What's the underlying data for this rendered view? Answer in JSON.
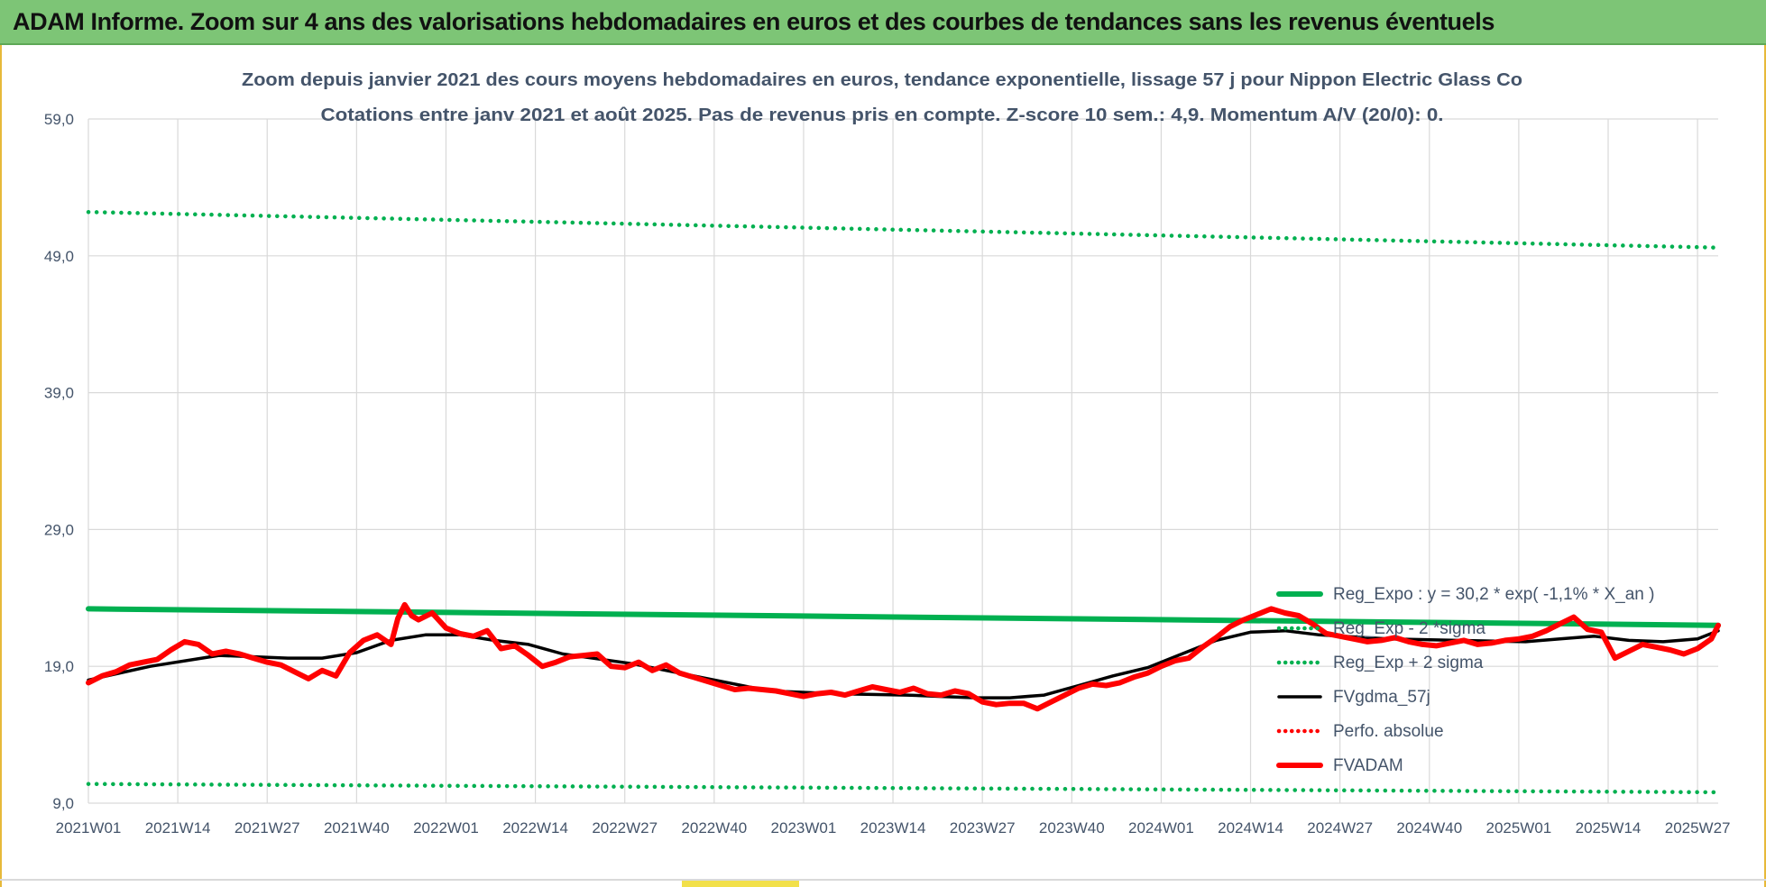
{
  "banner": {
    "text": "ADAM Informe. Zoom sur 4 ans des valorisations hebdomadaires en euros et des courbes de tendances sans les revenus éventuels"
  },
  "colors": {
    "banner_bg": "#7dc576",
    "reg_expo": "#00b050",
    "fvgdma": "#000000",
    "perfo": "#ff0000",
    "fvadam": "#ff0000",
    "grid": "#d9d9d9",
    "text": "#44546a"
  },
  "chart_data": {
    "type": "line",
    "title": "Zoom depuis janvier 2021 des cours moyens hebdomadaires en euros, tendance exponentielle, lissage 57 j pour Nippon Electric Glass Co",
    "subtitle": "Cotations entre janv 2021 et août 2025.  Pas de revenus pris en compte. Z-score 10 sem.: 4,9. Momentum A/V (20/0): 0.",
    "xlabel": "",
    "ylabel": "",
    "ylim": [
      9,
      59
    ],
    "yticks": [
      "9,0",
      "19,0",
      "29,0",
      "39,0",
      "49,0",
      "59,0"
    ],
    "x_range_weeks": [
      1,
      238
    ],
    "x_ticks": [
      {
        "week": 1,
        "label": "2021W01"
      },
      {
        "week": 14,
        "label": "2021W14"
      },
      {
        "week": 27,
        "label": "2021W27"
      },
      {
        "week": 40,
        "label": "2021W40"
      },
      {
        "week": 53,
        "label": "2022W01"
      },
      {
        "week": 66,
        "label": "2022W14"
      },
      {
        "week": 79,
        "label": "2022W27"
      },
      {
        "week": 92,
        "label": "2022W40"
      },
      {
        "week": 105,
        "label": "2023W01"
      },
      {
        "week": 118,
        "label": "2023W14"
      },
      {
        "week": 131,
        "label": "2023W27"
      },
      {
        "week": 144,
        "label": "2023W40"
      },
      {
        "week": 157,
        "label": "2024W01"
      },
      {
        "week": 170,
        "label": "2024W14"
      },
      {
        "week": 183,
        "label": "2024W27"
      },
      {
        "week": 196,
        "label": "2024W40"
      },
      {
        "week": 209,
        "label": "2025W01"
      },
      {
        "week": 222,
        "label": "2025W14"
      },
      {
        "week": 235,
        "label": "2025W27"
      }
    ],
    "grid": true,
    "legend_position": "right",
    "series": [
      {
        "name": "Reg_Expo : y = 30,2 * exp( -1,1% *  X_an )",
        "style": "solid-thick",
        "color": "#00b050",
        "x": [
          1,
          238
        ],
        "y": [
          23.2,
          22.0
        ]
      },
      {
        "name": "Reg_Exp - 2 *sigma",
        "style": "dotted",
        "color": "#00b050",
        "x": [
          1,
          238
        ],
        "y": [
          10.4,
          9.8
        ]
      },
      {
        "name": "Reg_Exp + 2 sigma",
        "style": "dotted",
        "color": "#00b050",
        "x": [
          1,
          238
        ],
        "y": [
          52.2,
          49.6
        ]
      },
      {
        "name": "FVgdma_57j",
        "style": "solid",
        "color": "#000000",
        "x": [
          1,
          10,
          20,
          30,
          35,
          40,
          45,
          50,
          55,
          60,
          65,
          70,
          80,
          90,
          100,
          110,
          120,
          125,
          130,
          135,
          140,
          145,
          150,
          155,
          160,
          165,
          170,
          175,
          180,
          190,
          200,
          210,
          215,
          220,
          225,
          230,
          235,
          238
        ],
        "y": [
          18.0,
          19.0,
          19.8,
          19.6,
          19.6,
          20.0,
          20.9,
          21.3,
          21.3,
          20.9,
          20.6,
          19.9,
          19.2,
          18.2,
          17.2,
          17.0,
          16.9,
          16.8,
          16.7,
          16.7,
          16.9,
          17.6,
          18.3,
          18.9,
          19.9,
          20.9,
          21.5,
          21.6,
          21.3,
          21.0,
          20.9,
          20.8,
          21.0,
          21.2,
          20.9,
          20.8,
          21.0,
          21.6
        ]
      },
      {
        "name": "Perfo. absolue",
        "style": "dotted",
        "color": "#ff0000",
        "x": [],
        "y": []
      },
      {
        "name": "FVADAM",
        "style": "solid-thick",
        "color": "#ff0000",
        "x": [
          1,
          3,
          5,
          7,
          9,
          11,
          13,
          15,
          17,
          19,
          21,
          23,
          25,
          27,
          29,
          31,
          33,
          35,
          37,
          39,
          41,
          43,
          45,
          46,
          47,
          48,
          49,
          51,
          53,
          55,
          57,
          59,
          61,
          63,
          65,
          67,
          69,
          71,
          73,
          75,
          77,
          79,
          81,
          83,
          85,
          87,
          89,
          91,
          93,
          95,
          97,
          99,
          101,
          103,
          105,
          107,
          109,
          111,
          113,
          115,
          117,
          119,
          121,
          123,
          125,
          127,
          129,
          131,
          133,
          135,
          137,
          139,
          141,
          143,
          145,
          147,
          149,
          151,
          153,
          155,
          157,
          159,
          161,
          163,
          165,
          167,
          169,
          171,
          173,
          175,
          177,
          179,
          181,
          183,
          185,
          187,
          189,
          191,
          193,
          195,
          197,
          199,
          201,
          203,
          205,
          207,
          209,
          211,
          213,
          215,
          217,
          219,
          221,
          223,
          225,
          227,
          229,
          231,
          233,
          235,
          237,
          238
        ],
        "y": [
          17.8,
          18.3,
          18.6,
          19.1,
          19.3,
          19.5,
          20.2,
          20.8,
          20.6,
          19.9,
          20.1,
          19.9,
          19.6,
          19.3,
          19.1,
          18.6,
          18.1,
          18.7,
          18.3,
          20.0,
          20.9,
          21.3,
          20.6,
          22.5,
          23.5,
          22.7,
          22.4,
          22.9,
          21.8,
          21.4,
          21.2,
          21.6,
          20.3,
          20.5,
          19.8,
          19.0,
          19.3,
          19.7,
          19.8,
          19.9,
          19.0,
          18.9,
          19.3,
          18.7,
          19.1,
          18.5,
          18.2,
          17.9,
          17.6,
          17.3,
          17.4,
          17.3,
          17.2,
          17.0,
          16.8,
          17.0,
          17.1,
          16.9,
          17.2,
          17.5,
          17.3,
          17.1,
          17.4,
          17.0,
          16.9,
          17.2,
          17.0,
          16.4,
          16.2,
          16.3,
          16.3,
          15.9,
          16.4,
          16.9,
          17.4,
          17.7,
          17.6,
          17.8,
          18.2,
          18.5,
          19.0,
          19.4,
          19.6,
          20.4,
          21.1,
          21.9,
          22.4,
          22.8,
          23.2,
          22.9,
          22.7,
          22.1,
          21.4,
          21.2,
          21.0,
          20.8,
          20.9,
          21.1,
          20.8,
          20.6,
          20.5,
          20.7,
          20.9,
          20.6,
          20.7,
          20.9,
          21.0,
          21.2,
          21.6,
          22.1,
          22.6,
          21.7,
          21.5,
          19.6,
          20.1,
          20.6,
          20.4,
          20.2,
          19.9,
          20.3,
          21.0,
          22.0
        ]
      }
    ]
  }
}
